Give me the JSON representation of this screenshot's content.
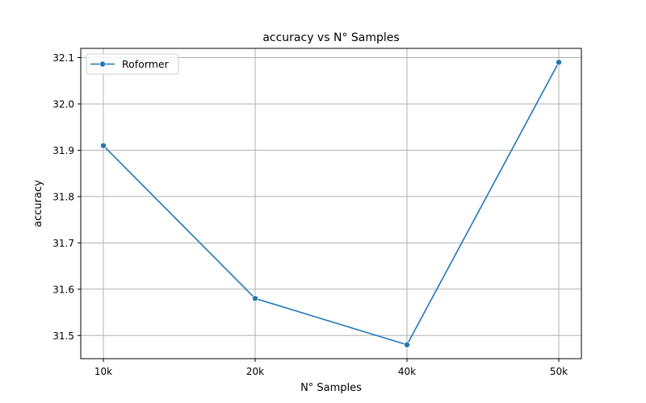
{
  "chart_data": {
    "type": "line",
    "title": "accuracy vs N° Samples",
    "xlabel": "N° Samples",
    "ylabel": "accuracy",
    "categories": [
      "10k",
      "20k",
      "40k",
      "50k"
    ],
    "series": [
      {
        "name": "Roformer",
        "values": [
          31.91,
          31.58,
          31.48,
          32.09
        ],
        "color": "#1f77b4",
        "marker": "circle"
      }
    ],
    "yticks": [
      "31.5",
      "31.6",
      "31.7",
      "31.8",
      "31.9",
      "32.0",
      "32.1"
    ],
    "ylim": [
      31.45,
      32.12
    ],
    "grid": true,
    "legend_position": "top-left"
  }
}
